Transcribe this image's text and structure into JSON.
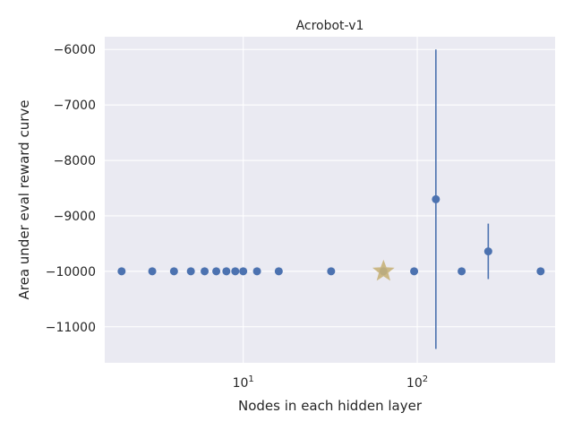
{
  "chart_data": {
    "type": "scatter",
    "title": "Acrobot-v1",
    "xlabel": "Nodes in each hidden layer",
    "ylabel": "Area under eval reward curve",
    "x_scale": "log",
    "xlim": [
      1.6,
      620
    ],
    "ylim": [
      -11650,
      -5770
    ],
    "grid": true,
    "x_ticks": [
      {
        "value": 10,
        "base": "10",
        "exp": "1"
      },
      {
        "value": 100,
        "base": "10",
        "exp": "2"
      }
    ],
    "y_ticks": [
      -11000,
      -10000,
      -9000,
      -8000,
      -7000,
      -6000
    ],
    "y_tick_labels": [
      "−11000",
      "−10000",
      "−9000",
      "−8000",
      "−7000",
      "−6000"
    ],
    "series_color": "#4c72b0",
    "highlight_color": "#c8b27a",
    "points": [
      {
        "x": 2,
        "y": -10000,
        "err": 0
      },
      {
        "x": 3,
        "y": -10000,
        "err": 0
      },
      {
        "x": 4,
        "y": -10000,
        "err": 0
      },
      {
        "x": 5,
        "y": -10000,
        "err": 0
      },
      {
        "x": 6,
        "y": -10000,
        "err": 0
      },
      {
        "x": 7,
        "y": -10000,
        "err": 0
      },
      {
        "x": 8,
        "y": -10000,
        "err": 0
      },
      {
        "x": 9,
        "y": -10000,
        "err": 0
      },
      {
        "x": 10,
        "y": -10000,
        "err": 0
      },
      {
        "x": 12,
        "y": -10000,
        "err": 0
      },
      {
        "x": 16,
        "y": -10000,
        "err": 0
      },
      {
        "x": 32,
        "y": -10000,
        "err": 0
      },
      {
        "x": 64,
        "y": -10000,
        "err": 0
      },
      {
        "x": 96,
        "y": -10000,
        "err": 0
      },
      {
        "x": 128,
        "y": -8700,
        "err": 2700
      },
      {
        "x": 180,
        "y": -10000,
        "err": 0
      },
      {
        "x": 256,
        "y": -9640,
        "err": 500
      },
      {
        "x": 512,
        "y": -10000,
        "err": 0
      }
    ],
    "highlight": {
      "x": 64,
      "y": -10000,
      "marker": "star"
    }
  }
}
